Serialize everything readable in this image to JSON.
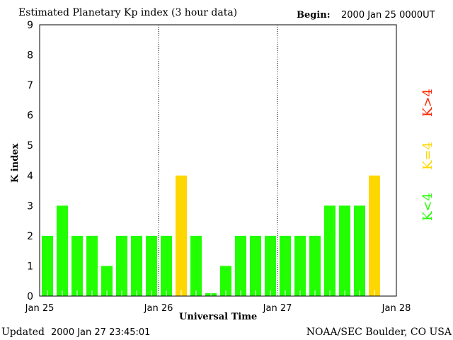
{
  "chart_data": {
    "type": "bar",
    "title": "Estimated Planetary Kp index (3 hour data)",
    "begin_label": "Begin:",
    "begin_value": "2000 Jan 25 0000UT",
    "xlabel": "Universal Time",
    "ylabel": "K index",
    "ylim": [
      0,
      9
    ],
    "yticks": [
      "0",
      "1",
      "2",
      "3",
      "4",
      "5",
      "6",
      "7",
      "8",
      "9"
    ],
    "xticks": [
      "Jan 25",
      "Jan 26",
      "Jan 27",
      "Jan 28"
    ],
    "interval_hours": 3,
    "values": [
      2,
      3,
      2,
      2,
      1,
      2,
      2,
      2,
      2,
      4,
      2,
      0,
      1,
      2,
      2,
      2,
      2,
      2,
      2,
      3,
      3,
      3,
      4
    ],
    "legend": [
      {
        "label": "K<4",
        "color": "#22ff00"
      },
      {
        "label": "K=4",
        "color": "#ffd700"
      },
      {
        "label": "K>4",
        "color": "#ff2200"
      }
    ]
  },
  "footer": {
    "updated_label": "Updated",
    "updated_value": "2000 Jan 27 23:45:01",
    "source": "NOAA/SEC Boulder, CO USA"
  }
}
